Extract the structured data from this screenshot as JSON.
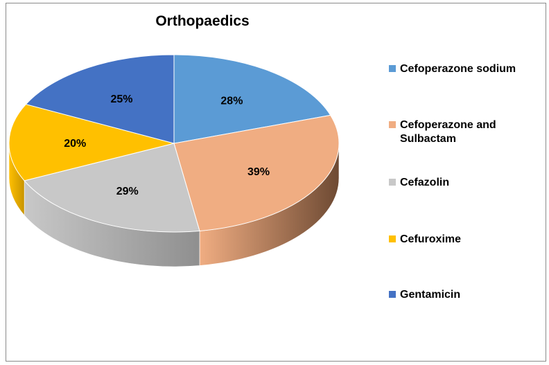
{
  "chart_data": {
    "type": "pie",
    "title": "Orthopaedics",
    "style": "3d",
    "legend_position": "right",
    "unit": "%",
    "slices": [
      {
        "name": "Cefoperazone sodium",
        "value": 28,
        "label": "28%",
        "color": "#5b9bd5",
        "side_color": "#3f77ad"
      },
      {
        "name": "Cefoperazone and\nSulbactam",
        "value": 39,
        "label": "39%",
        "color": "#f0ad82",
        "side_color": "#6e4a33"
      },
      {
        "name": "Cefazolin",
        "value": 29,
        "label": "29%",
        "color": "#c8c8c8",
        "side_color": "#8f8f8f"
      },
      {
        "name": "Cefuroxime",
        "value": 20,
        "label": "20%",
        "color": "#ffc000",
        "side_color": "#c89400"
      },
      {
        "name": "Gentamicin",
        "value": 25,
        "label": "25%",
        "color": "#4472c4",
        "side_color": "#2f4f8a"
      }
    ]
  }
}
